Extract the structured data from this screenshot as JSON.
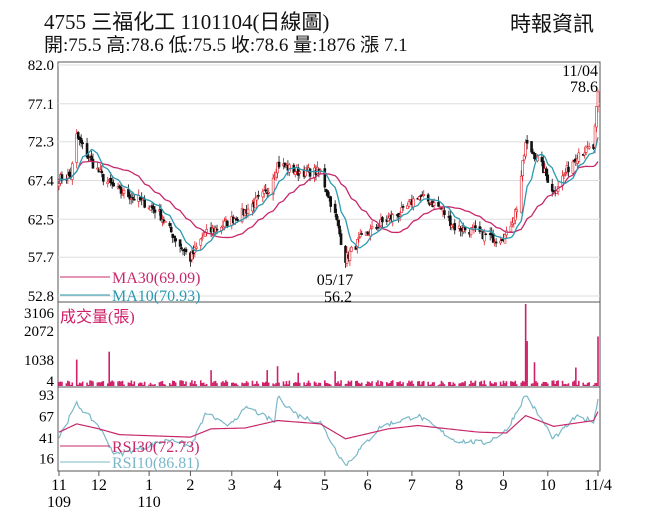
{
  "header": {
    "title": "4755  三福化工 1101104(日線圖)",
    "ohlc": "開:75.5 高:78.6 低:75.5 收:78.6 量:1876 漲 7.1",
    "source": "時報資訊"
  },
  "colors": {
    "up": "#e0202a",
    "down": "#111111",
    "ma30": "#c8286a",
    "ma10": "#2a9ab0",
    "volume": "#d0206a",
    "rsi30": "#c8286a",
    "rsi10": "#7ab8c8"
  },
  "chart_data": {
    "type": "candlestick",
    "price_axis": {
      "ticks": [
        "82.0",
        "77.1",
        "72.3",
        "67.4",
        "62.5",
        "57.7",
        "52.8"
      ],
      "range": [
        52.8,
        82.0
      ]
    },
    "annotations": {
      "last_date": "11/04",
      "last_price": "78.6",
      "low_date": "05/17",
      "low_price": "56.2"
    },
    "legend": {
      "ma30": "MA30(69.09)",
      "ma10": "MA10(70.93)",
      "volume": "成交量(張)",
      "rsi30": "RSI30(72.73)",
      "rsi10": "RSI10(86.81)"
    },
    "price_keypoints": [
      [
        "2020-11-04",
        67.6
      ],
      [
        "2020-11-12",
        68
      ],
      [
        "2020-11-16",
        73
      ],
      [
        "2020-11-25",
        70
      ],
      [
        "2020-12-05",
        67.5
      ],
      [
        "2020-12-15",
        66
      ],
      [
        "2020-12-28",
        65
      ],
      [
        "2021-01-10",
        63.5
      ],
      [
        "2021-01-22",
        60
      ],
      [
        "2021-02-01",
        57.5
      ],
      [
        "2021-02-10",
        60.5
      ],
      [
        "2021-02-25",
        62
      ],
      [
        "2021-03-10",
        63.5
      ],
      [
        "2021-03-25",
        66
      ],
      [
        "2021-04-01",
        69.5
      ],
      [
        "2021-04-15",
        68.5
      ],
      [
        "2021-04-30",
        68.5
      ],
      [
        "2021-05-10",
        63
      ],
      [
        "2021-05-17",
        57.5
      ],
      [
        "2021-05-27",
        60
      ],
      [
        "2021-06-10",
        62
      ],
      [
        "2021-06-25",
        63.5
      ],
      [
        "2021-07-05",
        65.5
      ],
      [
        "2021-07-20",
        64
      ],
      [
        "2021-07-30",
        61.5
      ],
      [
        "2021-08-12",
        61
      ],
      [
        "2021-08-27",
        60
      ],
      [
        "2021-09-03",
        60.5
      ],
      [
        "2021-09-10",
        64
      ],
      [
        "2021-09-16",
        72
      ],
      [
        "2021-09-25",
        70
      ],
      [
        "2021-10-05",
        66
      ],
      [
        "2021-10-15",
        69
      ],
      [
        "2021-10-22",
        71
      ],
      [
        "2021-11-01",
        71.5
      ],
      [
        "2021-11-04",
        78.6
      ]
    ],
    "volume_axis": {
      "ticks": [
        "3106",
        "2072",
        "1038",
        "4"
      ],
      "range": [
        4,
        3106
      ]
    },
    "volume_spikes": [
      [
        "2020-11-16",
        1000
      ],
      [
        "2020-12-08",
        1300
      ],
      [
        "2021-02-15",
        600
      ],
      [
        "2021-03-25",
        600
      ],
      [
        "2021-04-01",
        750
      ],
      [
        "2021-04-15",
        500
      ],
      [
        "2021-05-10",
        560
      ],
      [
        "2021-09-16",
        3106
      ],
      [
        "2021-09-17",
        1700
      ],
      [
        "2021-09-22",
        900
      ],
      [
        "2021-10-20",
        700
      ],
      [
        "2021-11-04",
        1876
      ]
    ],
    "rsi_axis": {
      "ticks": [
        "93",
        "67",
        "41",
        "16"
      ],
      "range": [
        0,
        100
      ]
    },
    "rsi30_keypoints": [
      [
        "2020-11-04",
        48
      ],
      [
        "2020-11-16",
        58
      ],
      [
        "2020-12-01",
        52
      ],
      [
        "2020-12-15",
        45
      ],
      [
        "2021-02-01",
        42
      ],
      [
        "2021-02-15",
        52
      ],
      [
        "2021-03-10",
        53
      ],
      [
        "2021-04-01",
        62
      ],
      [
        "2021-04-30",
        58
      ],
      [
        "2021-05-17",
        40
      ],
      [
        "2021-06-15",
        52
      ],
      [
        "2021-07-05",
        56
      ],
      [
        "2021-08-15",
        48
      ],
      [
        "2021-09-03",
        47
      ],
      [
        "2021-09-16",
        68
      ],
      [
        "2021-10-05",
        55
      ],
      [
        "2021-11-01",
        62
      ],
      [
        "2021-11-04",
        72.73
      ]
    ],
    "rsi10_keypoints": [
      [
        "2020-11-04",
        42
      ],
      [
        "2020-11-16",
        82
      ],
      [
        "2020-12-01",
        55
      ],
      [
        "2020-12-12",
        20
      ],
      [
        "2021-01-20",
        40
      ],
      [
        "2021-02-01",
        30
      ],
      [
        "2021-02-12",
        72
      ],
      [
        "2021-02-25",
        55
      ],
      [
        "2021-03-12",
        78
      ],
      [
        "2021-03-30",
        60
      ],
      [
        "2021-04-01",
        90
      ],
      [
        "2021-04-15",
        68
      ],
      [
        "2021-04-30",
        60
      ],
      [
        "2021-05-10",
        28
      ],
      [
        "2021-05-17",
        8
      ],
      [
        "2021-06-10",
        55
      ],
      [
        "2021-07-05",
        68
      ],
      [
        "2021-07-30",
        38
      ],
      [
        "2021-08-20",
        35
      ],
      [
        "2021-09-03",
        50
      ],
      [
        "2021-09-16",
        93
      ],
      [
        "2021-10-05",
        40
      ],
      [
        "2021-10-20",
        66
      ],
      [
        "2021-11-01",
        62
      ],
      [
        "2021-11-04",
        86.81
      ]
    ],
    "x_ticks": [
      [
        "2020-11-04",
        "11",
        "109"
      ],
      [
        "2020-12-01",
        "12",
        ""
      ],
      [
        "2021-01-04",
        "1",
        "110"
      ],
      [
        "2021-02-01",
        "2",
        ""
      ],
      [
        "2021-03-01",
        "3",
        ""
      ],
      [
        "2021-04-01",
        "4",
        ""
      ],
      [
        "2021-05-03",
        "5",
        ""
      ],
      [
        "2021-06-01",
        "6",
        ""
      ],
      [
        "2021-07-01",
        "7",
        ""
      ],
      [
        "2021-08-02",
        "8",
        ""
      ],
      [
        "2021-09-01",
        "9",
        ""
      ],
      [
        "2021-10-01",
        "10",
        ""
      ],
      [
        "2021-11-04",
        "11/4",
        ""
      ]
    ]
  }
}
